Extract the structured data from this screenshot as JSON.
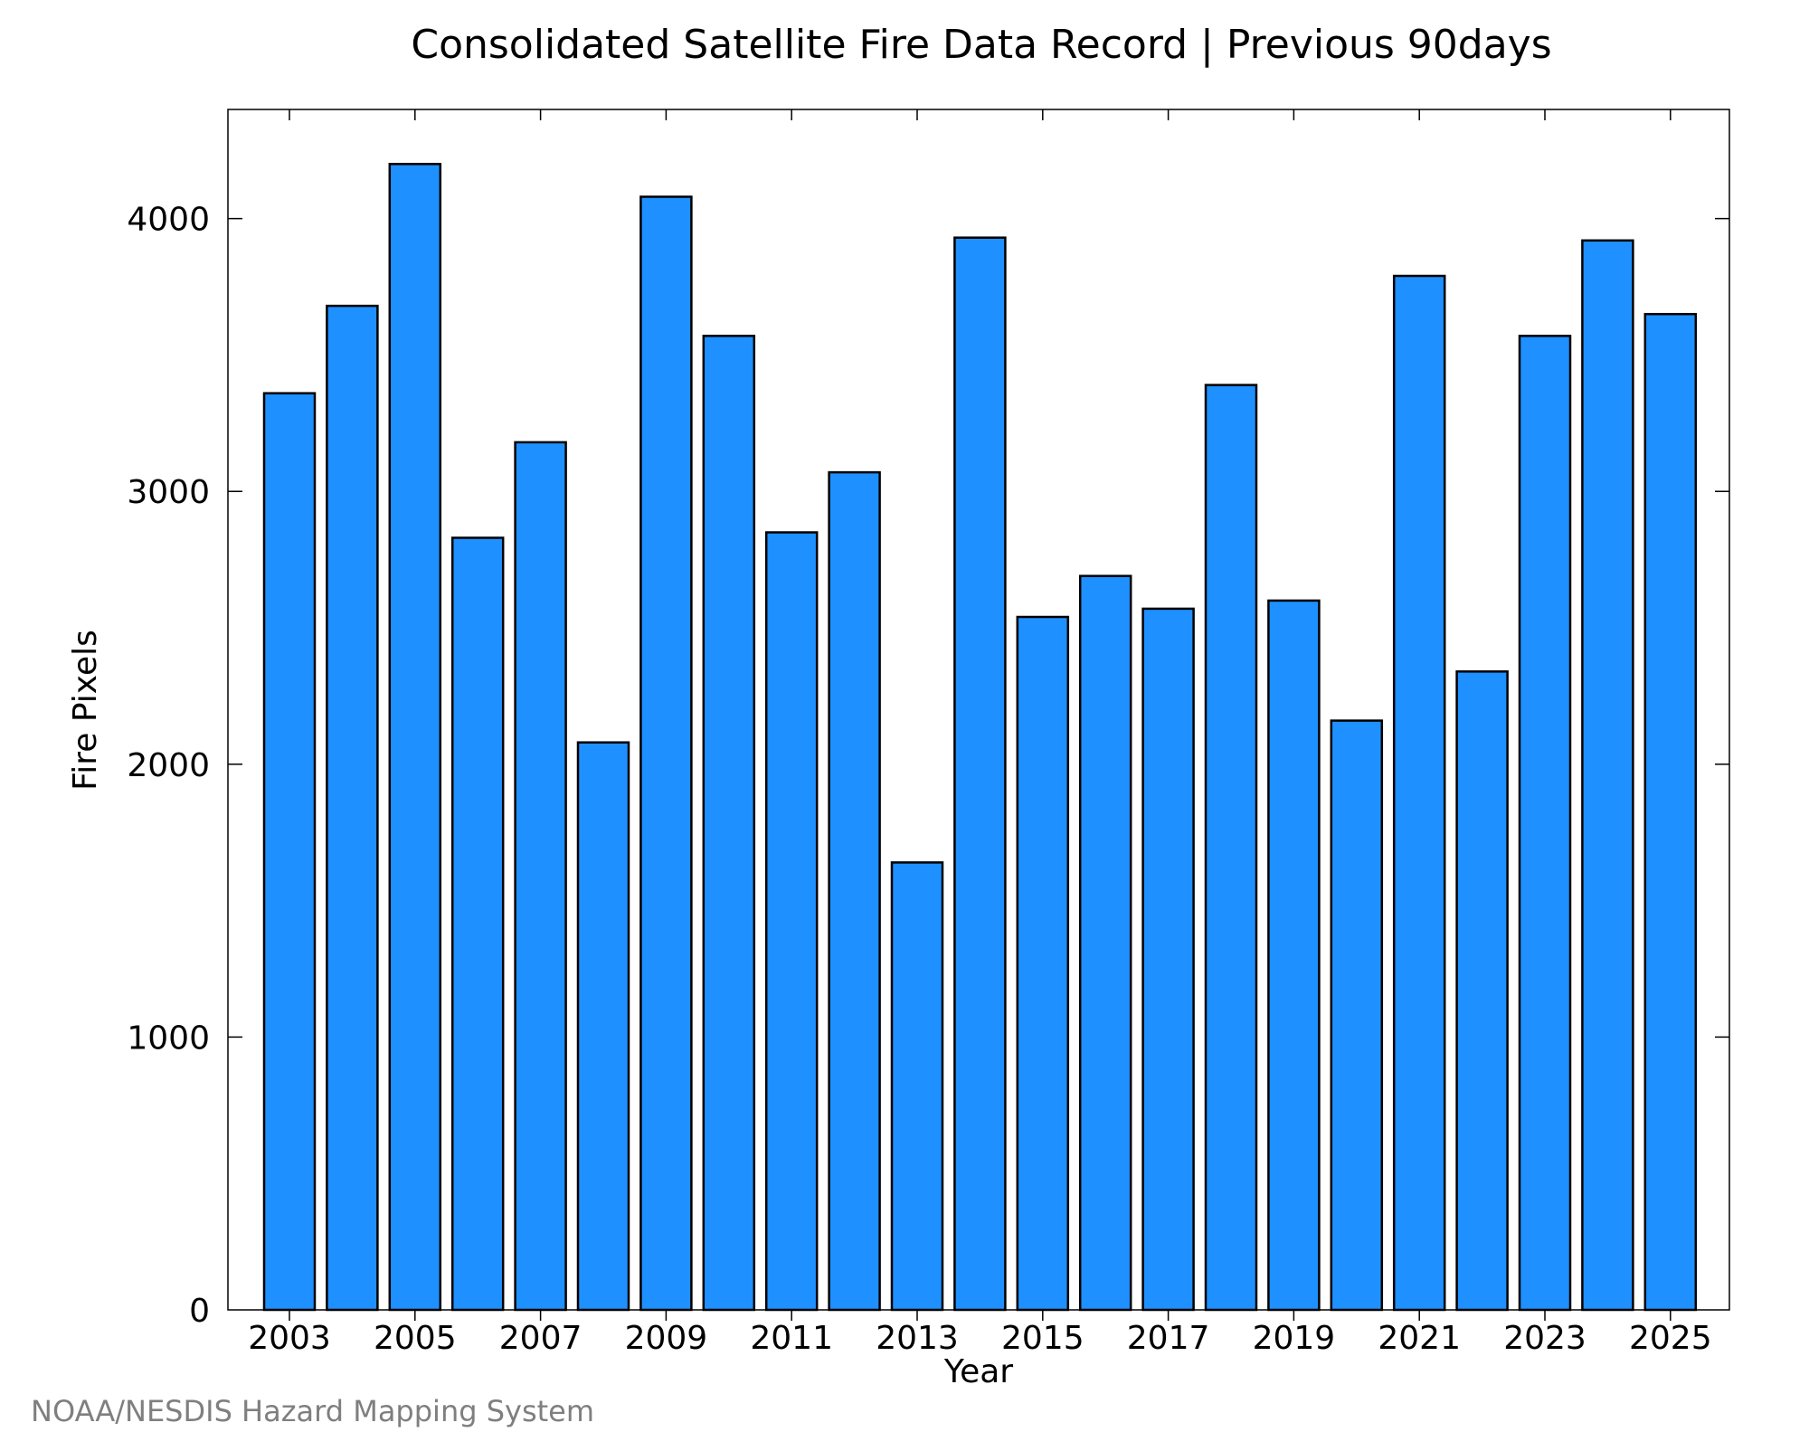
{
  "chart_data": {
    "type": "bar",
    "title": "Consolidated Satellite Fire Data Record | Previous 90days",
    "xlabel": "Year",
    "ylabel": "Fire Pixels",
    "categories": [
      "2003",
      "2004",
      "2005",
      "2006",
      "2007",
      "2008",
      "2009",
      "2010",
      "2011",
      "2012",
      "2013",
      "2014",
      "2015",
      "2016",
      "2017",
      "2018",
      "2019",
      "2020",
      "2021",
      "2022",
      "2023",
      "2024",
      "2025"
    ],
    "values": [
      3360,
      3680,
      4200,
      2830,
      3180,
      2080,
      4080,
      3570,
      2850,
      3070,
      1640,
      3930,
      2540,
      2690,
      2570,
      3390,
      2600,
      2160,
      3790,
      2340,
      3570,
      3920,
      3650
    ],
    "x_tick_labels": [
      "2003",
      "2005",
      "2007",
      "2009",
      "2011",
      "2013",
      "2015",
      "2017",
      "2019",
      "2021",
      "2023",
      "2025"
    ],
    "y_tick_labels": [
      "0",
      "1000",
      "2000",
      "3000",
      "4000"
    ],
    "ylim": [
      0,
      4400
    ],
    "grid": false,
    "bar_color": "#1E90FF",
    "bar_edge_color": "#000000"
  },
  "footer": {
    "credit": "NOAA/NESDIS Hazard Mapping System"
  }
}
